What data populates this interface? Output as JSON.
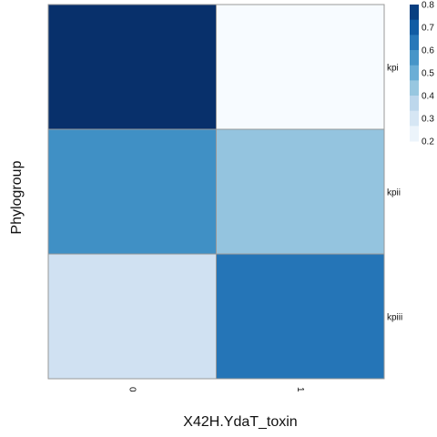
{
  "chart_data": {
    "type": "heatmap",
    "xlabel": "X42H.YdaT_toxin",
    "ylabel": "Phylogroup",
    "x_categories": [
      "0",
      "1"
    ],
    "y_categories": [
      "kpi",
      "kpii",
      "kpiii"
    ],
    "values": [
      [
        0.8,
        0.2
      ],
      [
        0.58,
        0.44
      ],
      [
        0.32,
        0.64
      ]
    ],
    "colorbar": {
      "range": [
        0.2,
        0.8
      ],
      "ticks": [
        "0.2",
        "0.3",
        "0.4",
        "0.5",
        "0.6",
        "0.7",
        "0.8"
      ],
      "steps": 9,
      "colors": [
        "#f7fbff",
        "#deebf7",
        "#c6dbef",
        "#9ecae1",
        "#6baed6",
        "#4292c6",
        "#2171b5",
        "#08519c",
        "#08306b"
      ]
    },
    "legend_placement": "top-right",
    "grid": false
  }
}
